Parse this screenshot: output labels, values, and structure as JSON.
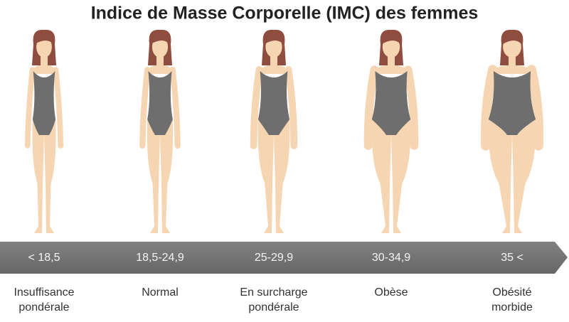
{
  "title": "Indice de Masse Corporelle (IMC) des femmes",
  "categories": [
    {
      "range": "< 18,5",
      "label_lines": [
        "Insuffisance",
        "pondérale"
      ]
    },
    {
      "range": "18,5-24,9",
      "label_lines": [
        "Normal"
      ]
    },
    {
      "range": "25-29,9",
      "label_lines": [
        "En surcharge",
        "pondérale"
      ]
    },
    {
      "range": "30-34,9",
      "label_lines": [
        "Obèse"
      ]
    },
    {
      "range": "35 <",
      "label_lines": [
        "Obésité",
        "morbide"
      ]
    }
  ]
}
